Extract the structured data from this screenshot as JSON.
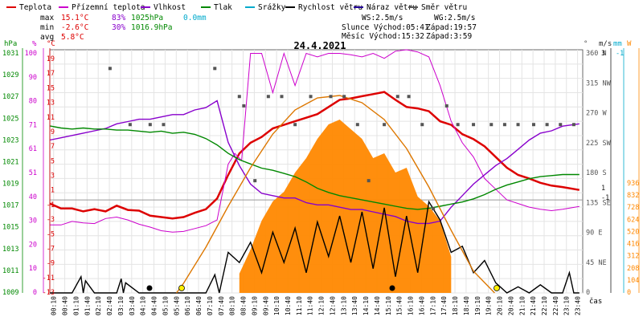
{
  "legend": [
    {
      "label": "Teplota",
      "color": "#dd0000"
    },
    {
      "label": "Přízemní teplota",
      "color": "#cc00cc"
    },
    {
      "label": "Vlhkost",
      "color": "#8800cc"
    },
    {
      "label": "Tlak",
      "color": "#008800"
    },
    {
      "label": "Srážky",
      "color": "#00aacc"
    },
    {
      "label": "Rychlost větru",
      "color": "#000000"
    },
    {
      "label": "Náraz větru",
      "color": "#220099"
    },
    {
      "label": "Směr větru",
      "color": "#555555"
    }
  ],
  "stats": {
    "max_label": "max",
    "max_temp": "15.1°C",
    "max_hum": "83%",
    "max_pres": "1025hPa",
    "max_rain": "0.0mm",
    "min_label": "min",
    "min_temp": "-2.6°C",
    "min_hum": "30%",
    "min_pres": "1016.9hPa",
    "avg_label": "avg",
    "avg_temp": "5.8°C"
  },
  "astro": {
    "ws": "WS:2.5m/s",
    "wg": "WG:2.5m/s",
    "sun_rise": "Slunce Východ:05:41",
    "sun_set": "Západ:19:57",
    "moon_rise": "Měsíc  Východ:15:32",
    "moon_set": "Západ:3:59"
  },
  "chart_data": {
    "type": "line",
    "title": "24.4.2021",
    "xlabel": "čas",
    "x_ticks": [
      "00:10",
      "00:40",
      "01:10",
      "01:40",
      "02:10",
      "02:40",
      "03:10",
      "03:40",
      "04:10",
      "04:40",
      "05:10",
      "05:40",
      "06:10",
      "06:40",
      "07:10",
      "07:40",
      "08:10",
      "08:40",
      "09:10",
      "09:40",
      "10:10",
      "10:40",
      "11:10",
      "11:40",
      "12:10",
      "12:40",
      "13:10",
      "13:40",
      "14:10",
      "14:40",
      "15:10",
      "15:40",
      "16:10",
      "16:40",
      "17:10",
      "17:40",
      "18:10",
      "18:40",
      "19:10",
      "19:40",
      "20:10",
      "20:40",
      "21:10",
      "21:40",
      "22:10",
      "22:40",
      "23:10",
      "23:40"
    ],
    "axes": {
      "pressure": {
        "label": "hPa",
        "color": "#008800",
        "ticks": [
          "1031",
          "1029",
          "1027",
          "1025",
          "1023",
          "1021",
          "1019",
          "1017",
          "1015",
          "1013",
          "1011",
          "1009"
        ]
      },
      "humidity": {
        "label": "%",
        "color": "#cc00cc",
        "ticks": [
          "100",
          "90",
          "80",
          "71",
          "61",
          "51",
          "40",
          "30",
          "20",
          "10",
          "0"
        ]
      },
      "temperature": {
        "label": "°C",
        "color": "#dd0000",
        "ticks": [
          "19",
          "17",
          "15",
          "13",
          "11",
          "9",
          "7",
          "5",
          "3",
          "1",
          "-1",
          "-3",
          "-5",
          "-7",
          "-9",
          "-11",
          "-13"
        ],
        "range": [
          -13,
          21
        ]
      },
      "direction": {
        "label": "°",
        "color": "#555555",
        "ticks": [
          "360 N",
          "315 NW",
          "270 W",
          "225 SW",
          "180 S",
          "135 SE",
          "90 E",
          "45 NE",
          "0"
        ]
      },
      "wind": {
        "label": "m/s",
        "color": "#222222",
        "ticks": [
          "3",
          "1",
          "-1"
        ]
      },
      "rain": {
        "label": "mm",
        "color": "#00aacc",
        "ticks": [
          "-1"
        ]
      },
      "solar": {
        "label": "W",
        "color": "#ff8800",
        "ticks": [
          "936",
          "832",
          "728",
          "624",
          "520",
          "416",
          "312",
          "208",
          "104",
          "0"
        ]
      }
    },
    "series": [
      {
        "name": "Teplota",
        "color": "#dd0000",
        "unit": "°C",
        "x": [
          0,
          0.5,
          1,
          1.5,
          2,
          2.5,
          3,
          3.5,
          4,
          4.5,
          5,
          5.5,
          6,
          6.5,
          7,
          7.5,
          8,
          8.5,
          9,
          9.5,
          10,
          10.5,
          11,
          11.5,
          12,
          12.5,
          13,
          13.5,
          14,
          14.5,
          15,
          15.5,
          16,
          16.5,
          17,
          17.5,
          18,
          18.5,
          19,
          19.5,
          20,
          20.5,
          21,
          21.5,
          22,
          22.5,
          23,
          23.75
        ],
        "y": [
          -0.5,
          -1.2,
          -1.2,
          -1.6,
          -1.3,
          -1.6,
          -0.8,
          -1.4,
          -1.5,
          -2.2,
          -2.4,
          -2.6,
          -2.4,
          -1.8,
          -1.3,
          0.2,
          3.5,
          6.5,
          8.0,
          8.8,
          10.0,
          10.5,
          11.0,
          11.5,
          12.0,
          13.0,
          14.0,
          14.2,
          14.5,
          14.8,
          15.1,
          14.0,
          13.0,
          12.8,
          12.4,
          11.0,
          10.5,
          9.2,
          8.5,
          7.5,
          6.0,
          4.5,
          3.5,
          3.0,
          2.4,
          2.0,
          1.8,
          1.4
        ]
      },
      {
        "name": "Přízemní teplota",
        "color": "#cc00cc",
        "unit": "°C",
        "x": [
          0,
          0.5,
          1,
          1.5,
          2,
          2.5,
          3,
          3.5,
          4,
          4.5,
          5,
          5.5,
          6,
          6.5,
          7,
          7.5,
          8,
          8.3,
          8.6,
          9,
          9.5,
          10,
          10.5,
          11,
          11.5,
          12,
          12.5,
          13,
          13.5,
          14,
          14.5,
          15,
          15.5,
          16,
          16.5,
          17,
          17.5,
          18,
          18.5,
          19,
          19.5,
          20,
          20.5,
          21,
          21.5,
          22,
          22.5,
          23,
          23.75
        ],
        "y": [
          -3.5,
          -3.5,
          -3.0,
          -3.2,
          -3.3,
          -2.6,
          -2.4,
          -2.8,
          -3.4,
          -3.8,
          -4.3,
          -4.5,
          -4.4,
          -4.0,
          -3.6,
          -2.8,
          5.0,
          6.5,
          5.5,
          20.5,
          20.5,
          15.0,
          20.5,
          16.0,
          20.5,
          20.0,
          20.5,
          20.5,
          20.3,
          20.0,
          20.5,
          19.8,
          20.8,
          21.0,
          20.7,
          20.0,
          16.0,
          11.0,
          8.0,
          6.0,
          3.0,
          1.5,
          0.0,
          -0.5,
          -1.0,
          -1.3,
          -1.5,
          -1.3,
          -0.9
        ]
      },
      {
        "name": "Vlhkost",
        "color": "#8800cc",
        "unit": "%",
        "x": [
          0,
          0.5,
          1,
          1.5,
          2,
          2.5,
          3,
          3.5,
          4,
          4.5,
          5,
          5.5,
          6,
          6.5,
          7,
          7.5,
          8,
          8.5,
          9,
          9.5,
          10,
          10.5,
          11,
          11.5,
          12,
          12.5,
          13,
          13.5,
          14,
          14.5,
          15,
          15.5,
          16,
          16.5,
          17,
          17.5,
          18,
          18.5,
          19,
          19.5,
          20,
          20.5,
          21,
          21.5,
          22,
          22.5,
          23,
          23.75
        ],
        "y": [
          66,
          67,
          68,
          69,
          70,
          71,
          73,
          74,
          75,
          75,
          76,
          77,
          77,
          79,
          80,
          83,
          65,
          55,
          47,
          43,
          42,
          41,
          41,
          39,
          38,
          38,
          37,
          36,
          36,
          35,
          34,
          33,
          31,
          30,
          30,
          31,
          37,
          42,
          47,
          51,
          55,
          58,
          62,
          66,
          69,
          70,
          72,
          73
        ]
      },
      {
        "name": "Tlak",
        "color": "#008800",
        "unit": "hPa",
        "x": [
          0,
          0.5,
          1,
          1.5,
          2,
          2.5,
          3,
          3.5,
          4,
          4.5,
          5,
          5.5,
          6,
          6.5,
          7,
          7.5,
          8,
          8.5,
          9,
          9.5,
          10,
          10.5,
          11,
          11.5,
          12,
          12.5,
          13,
          13.5,
          14,
          14.5,
          15,
          15.5,
          16,
          16.5,
          17,
          17.5,
          18,
          18.5,
          19,
          19.5,
          20,
          20.5,
          21,
          21.5,
          22,
          22.5,
          23,
          23.75
        ],
        "y": [
          1024.8,
          1024.6,
          1024.5,
          1024.6,
          1024.5,
          1024.5,
          1024.4,
          1024.4,
          1024.3,
          1024.2,
          1024.3,
          1024.1,
          1024.2,
          1024.0,
          1023.6,
          1023.0,
          1022.2,
          1021.6,
          1021.2,
          1020.8,
          1020.6,
          1020.3,
          1020.0,
          1019.5,
          1018.9,
          1018.5,
          1018.2,
          1018.0,
          1017.8,
          1017.6,
          1017.4,
          1017.2,
          1017.0,
          1016.9,
          1017.0,
          1017.2,
          1017.4,
          1017.6,
          1017.9,
          1018.3,
          1018.8,
          1019.2,
          1019.5,
          1019.8,
          1020.0,
          1020.1,
          1020.2,
          1020.2
        ]
      },
      {
        "name": "Rychlost větru",
        "color": "#000000",
        "unit": "m/s",
        "x": [
          0,
          1,
          1.4,
          1.5,
          1.6,
          2,
          3,
          3.2,
          3.3,
          3.4,
          4,
          5,
          6,
          7,
          7.4,
          7.6,
          8,
          8.5,
          9,
          9.5,
          10,
          10.5,
          11,
          11.5,
          12,
          12.5,
          13,
          13.5,
          14,
          14.5,
          15,
          15.5,
          16,
          16.5,
          17,
          17.5,
          18,
          18.5,
          19,
          19.5,
          20,
          20.5,
          21,
          21.5,
          22,
          22.5,
          23,
          23.3,
          23.5,
          23.75
        ],
        "y": [
          0,
          0,
          0.8,
          0,
          0.6,
          0,
          0,
          0.7,
          0,
          0.5,
          0,
          0,
          0,
          0,
          0.9,
          0,
          2.0,
          1.5,
          2.5,
          1.0,
          3.0,
          1.5,
          3.2,
          1.0,
          3.5,
          1.8,
          3.8,
          1.5,
          4.0,
          1.2,
          4.2,
          0.8,
          3.8,
          1.0,
          4.5,
          3.6,
          2.0,
          2.3,
          1.0,
          1.6,
          0.5,
          0,
          0.3,
          0,
          0.4,
          0,
          0,
          1.0,
          0,
          0
        ]
      },
      {
        "name": "Solární záření",
        "color": "#ff8800",
        "unit": "W",
        "x": [
          8.5,
          9,
          9.5,
          10,
          10.5,
          11,
          11.5,
          12,
          12.5,
          13,
          13.5,
          14,
          14.5,
          15,
          15.5,
          16,
          16.5,
          17,
          17.5,
          18
        ],
        "y": [
          80,
          180,
          300,
          380,
          420,
          500,
          560,
          640,
          700,
          720,
          680,
          640,
          560,
          580,
          500,
          520,
          400,
          360,
          300,
          150
        ]
      },
      {
        "name": "Solární maximum",
        "color": "#dd7700",
        "unit": "W",
        "x": [
          5.68,
          6,
          7,
          8,
          9,
          10,
          11,
          12,
          13,
          14,
          15,
          16,
          17,
          18,
          19,
          19.95
        ],
        "y": [
          0,
          40,
          190,
          360,
          520,
          660,
          760,
          810,
          820,
          790,
          720,
          600,
          440,
          260,
          90,
          0
        ]
      },
      {
        "name": "Směr větru",
        "color": "#555555",
        "unit": "°",
        "marker": "square",
        "x": [
          2.7,
          3.6,
          4.5,
          5.1,
          7.4,
          8.5,
          8.7,
          9.2,
          9.8,
          10.4,
          11.0,
          11.7,
          12.6,
          13.2,
          13.8,
          14.3,
          15.0,
          15.6,
          16.1,
          16.7,
          17.2,
          17.8,
          18.3,
          19.0,
          19.8,
          20.4,
          21.0,
          21.7,
          22.3,
          22.9,
          23.5
        ],
        "y": [
          360,
          270,
          270,
          270,
          360,
          315,
          300,
          180,
          315,
          315,
          270,
          315,
          315,
          315,
          270,
          180,
          270,
          315,
          315,
          270,
          135,
          300,
          270,
          270,
          270,
          270,
          270,
          270,
          270,
          270,
          270
        ]
      }
    ],
    "grid": true
  }
}
